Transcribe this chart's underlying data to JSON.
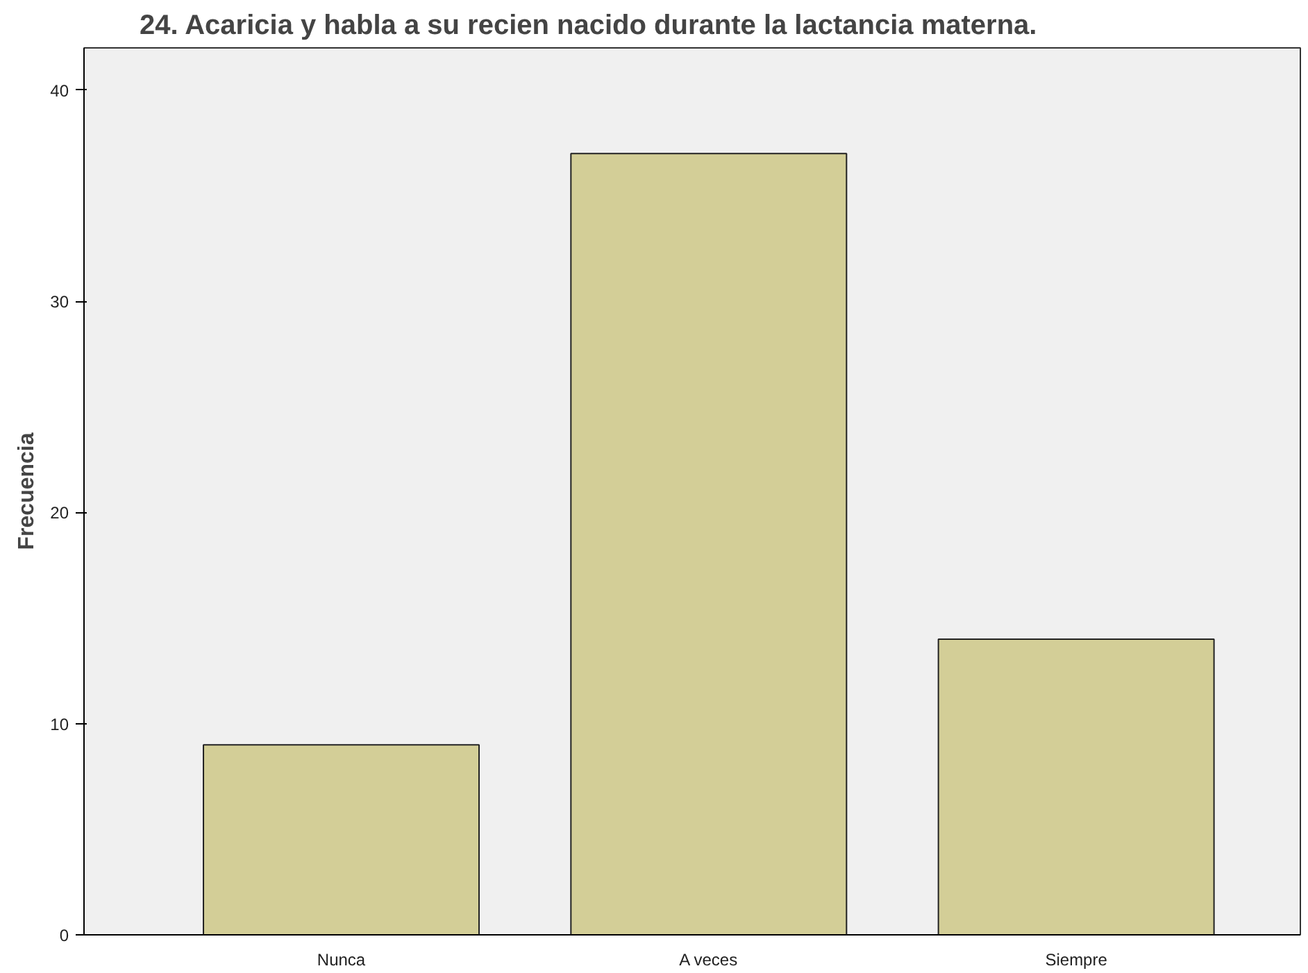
{
  "chart_data": {
    "type": "bar",
    "title": "24. Acaricia y habla a su recien nacido durante la lactancia materna.",
    "ylabel": "Frecuencia",
    "categories": [
      "Nunca",
      "A veces",
      "Siempre"
    ],
    "values": [
      9,
      37,
      14
    ],
    "color": "#d3ce97",
    "ylim": [
      0,
      42
    ],
    "yticks": [
      0,
      10,
      20,
      30,
      40
    ],
    "grid": false
  }
}
